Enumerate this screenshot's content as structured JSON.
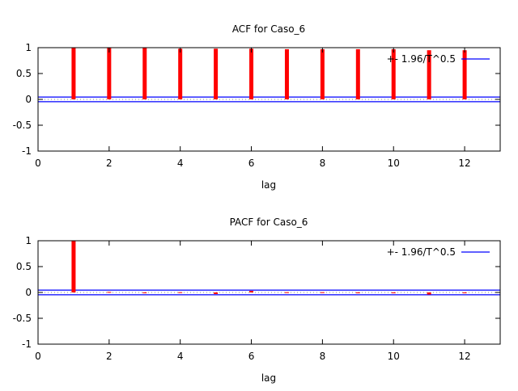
{
  "chart_data": [
    {
      "type": "bar",
      "title": "ACF for Caso_6",
      "xlabel": "lag",
      "ylabel": "",
      "xlim": [
        0,
        13
      ],
      "ylim": [
        -1,
        1
      ],
      "xticks": [
        "0",
        "2",
        "4",
        "6",
        "8",
        "10",
        "12"
      ],
      "yticks": [
        "1",
        "0.5",
        "0",
        "-0.5",
        "-1"
      ],
      "x": [
        1,
        2,
        3,
        4,
        5,
        6,
        7,
        8,
        9,
        10,
        11,
        12
      ],
      "values": [
        1.0,
        1.0,
        1.0,
        0.98,
        0.98,
        0.98,
        0.97,
        0.97,
        0.97,
        0.97,
        0.95,
        0.95
      ],
      "bar_color": "#ff0000",
      "band": 0.045,
      "band_color": "#0000ff",
      "legend": "+- 1.96/T^0.5",
      "legend_position": "top-right"
    },
    {
      "type": "bar",
      "title": "PACF for Caso_6",
      "xlabel": "lag",
      "ylabel": "",
      "xlim": [
        0,
        13
      ],
      "ylim": [
        -1,
        1
      ],
      "xticks": [
        "0",
        "2",
        "4",
        "6",
        "8",
        "10",
        "12"
      ],
      "yticks": [
        "1",
        "0.5",
        "0",
        "-0.5",
        "-1"
      ],
      "x": [
        1,
        2,
        3,
        4,
        5,
        6,
        7,
        8,
        9,
        10,
        11,
        12
      ],
      "values": [
        1.0,
        0.01,
        -0.005,
        0.005,
        -0.03,
        0.03,
        0.005,
        0.005,
        -0.005,
        -0.01,
        -0.04,
        0.0
      ],
      "bar_color": "#ff0000",
      "band": 0.045,
      "band_color": "#0000ff",
      "legend": "+- 1.96/T^0.5",
      "legend_position": "top-right"
    }
  ]
}
